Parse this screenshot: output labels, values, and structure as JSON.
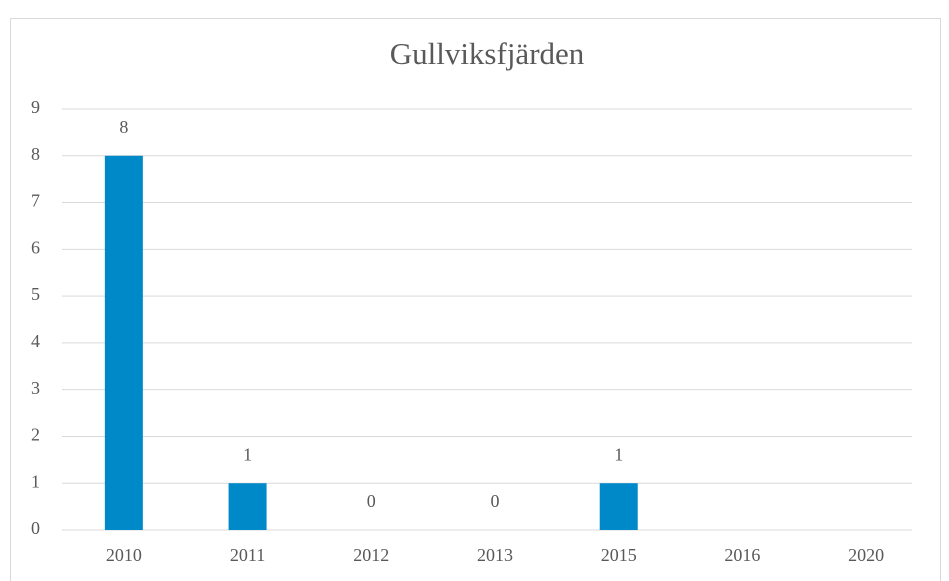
{
  "chart_data": {
    "type": "bar",
    "title": "Gullviksfjärden",
    "categories": [
      "2010",
      "2011",
      "2012",
      "2013",
      "2015",
      "2016",
      "2020"
    ],
    "values": [
      8,
      1,
      0,
      0,
      1,
      null,
      null
    ],
    "color": "#0089c9",
    "ylim": [
      0,
      9
    ],
    "yticks": [
      0,
      1,
      2,
      3,
      4,
      5,
      6,
      7,
      8,
      9
    ],
    "grid": true
  }
}
